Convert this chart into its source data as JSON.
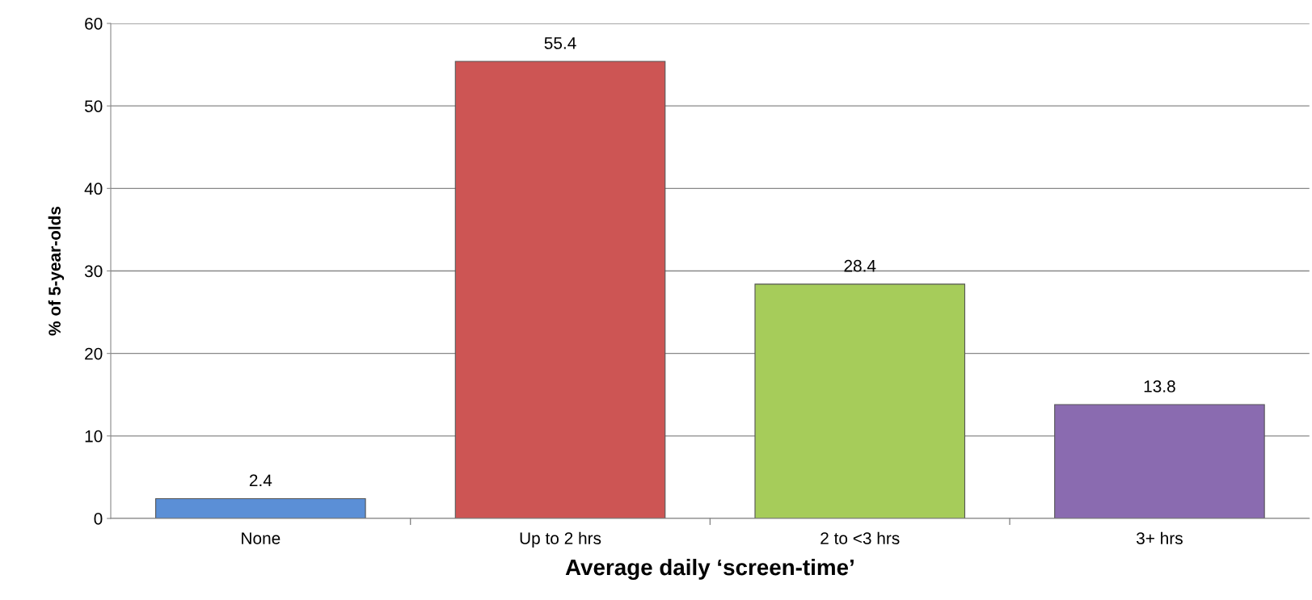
{
  "chart_data": {
    "type": "bar",
    "xlabel": "Average daily ‘screen-time’",
    "ylabel": "% of 5-year-olds",
    "categories": [
      "None",
      "Up to 2 hrs",
      "2 to <3 hrs",
      "3+ hrs"
    ],
    "values": [
      2.4,
      55.4,
      28.4,
      13.8
    ],
    "colors": [
      "#5b8fd6",
      "#cd5554",
      "#a6cc5a",
      "#8a6bb0"
    ],
    "ylim": [
      0,
      60
    ],
    "yticks": [
      0,
      10,
      20,
      30,
      40,
      50,
      60
    ],
    "grid": "y",
    "data_labels": true
  }
}
